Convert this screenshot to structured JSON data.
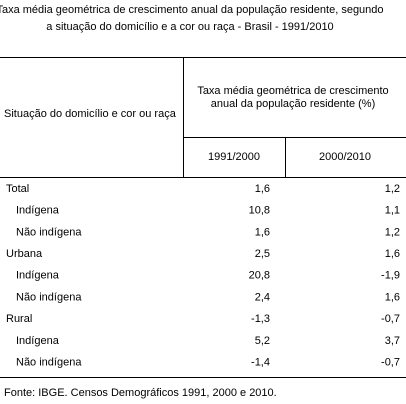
{
  "title": [
    "Taxa média geométrica de crescimento anual da população residente, segundo",
    "a situação do domicílio e a cor ou raça - Brasil - 1991/2010"
  ],
  "table": {
    "row_header": "Situação do domicílio e cor ou raça",
    "column_group": [
      "Taxa média geométrica de crescimento",
      "anual da população residente (%)"
    ],
    "columns": [
      "1991/2000",
      "2000/2010"
    ],
    "groups": [
      {
        "label": "Total",
        "values": [
          "1,6",
          "1,2"
        ],
        "children": [
          {
            "label": "Indígena",
            "values": [
              "10,8",
              "1,1"
            ]
          },
          {
            "label": "Não indígena",
            "values": [
              "1,6",
              "1,2"
            ]
          }
        ]
      },
      {
        "label": "Urbana",
        "values": [
          "2,5",
          "1,6"
        ],
        "children": [
          {
            "label": "Indígena",
            "values": [
              "20,8",
              "-1,9"
            ]
          },
          {
            "label": "Não indígena",
            "values": [
              "2,4",
              "1,6"
            ]
          }
        ]
      },
      {
        "label": "Rural",
        "values": [
          "-1,3",
          "-0,7"
        ],
        "children": [
          {
            "label": "Indígena",
            "values": [
              "5,2",
              "3,7"
            ]
          },
          {
            "label": "Não indígena",
            "values": [
              "-1,4",
              "-0,7"
            ]
          }
        ]
      }
    ]
  },
  "footer": "Fonte: IBGE. Censos Demográficos 1991, 2000 e 2010."
}
